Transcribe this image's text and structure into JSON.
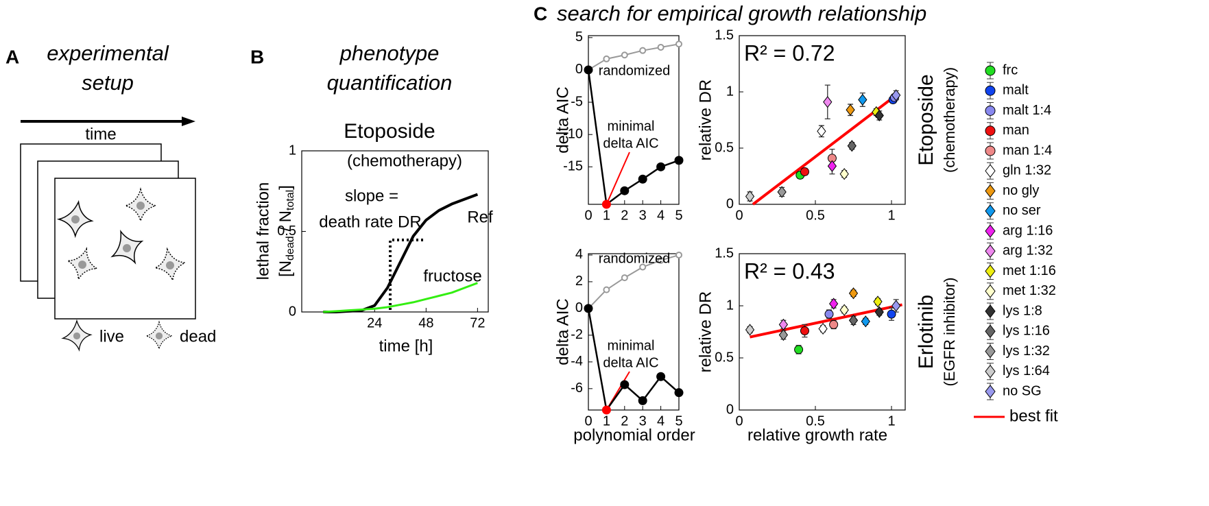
{
  "panels": {
    "A": {
      "letter": "A",
      "title": [
        "experimental",
        "setup"
      ],
      "time": "time",
      "live": "live",
      "dead": "dead"
    },
    "B": {
      "letter": "B",
      "title": [
        "phenotype",
        "quantification"
      ]
    },
    "C": {
      "letter": "C",
      "title": "search for empirical growth relationship",
      "rows": [
        [
          "Etoposide",
          "(chemotherapy)"
        ],
        [
          "Erlotinib",
          "(EGFR inhibitor)"
        ]
      ]
    }
  },
  "legend": {
    "names": [
      "frc",
      "malt",
      "malt 1:4",
      "man",
      "man 1:4",
      "gln 1:32",
      "no gly",
      "no ser",
      "arg 1:16",
      "arg 1:32",
      "met 1:16",
      "met 1:32",
      "lys 1:8",
      "lys 1:16",
      "lys 1:32",
      "lys 1:64",
      "no SG"
    ],
    "colors": [
      "#22dd22",
      "#1144ee",
      "#8888ee",
      "#ee1111",
      "#ee8888",
      "#ffffff",
      "#ee9911",
      "#1199ee",
      "#ee22ee",
      "#ee88ee",
      "#eeee11",
      "#ffffcc",
      "#333333",
      "#666666",
      "#999999",
      "#cccccc",
      "#9999ee"
    ],
    "markers": [
      "circle",
      "circle",
      "circle",
      "circle",
      "circle",
      "diamond",
      "diamond",
      "diamond",
      "diamond",
      "diamond",
      "diamond",
      "diamond",
      "diamond",
      "diamond",
      "diamond",
      "diamond",
      "diamond"
    ],
    "fit_name": "best fit",
    "fit_color": "#ff0000"
  },
  "chart_data": [
    {
      "type": "line",
      "title": "Etoposide",
      "subtitle": "(chemotherapy)",
      "xlabel": "time [h]",
      "ylabel": [
        "lethal fraction",
        [
          "[N",
          "dead",
          " / N",
          "total",
          "]"
        ]
      ],
      "annotation": [
        "slope =",
        "death rate DR"
      ],
      "x": [
        0,
        6,
        12,
        18,
        24,
        30,
        36,
        42,
        48,
        54,
        60,
        66,
        72
      ],
      "series": [
        {
          "name": "Ref",
          "color": "#000000",
          "values": [
            0,
            0,
            0.005,
            0.01,
            0.04,
            0.15,
            0.31,
            0.47,
            0.57,
            0.63,
            0.67,
            0.7,
            0.73
          ]
        },
        {
          "name": "fructose",
          "color": "#33ee11",
          "values": [
            0,
            0.005,
            0.01,
            0.015,
            0.02,
            0.03,
            0.045,
            0.06,
            0.08,
            0.1,
            0.12,
            0.15,
            0.18
          ]
        }
      ],
      "xlim": [
        -10,
        77
      ],
      "ylim": [
        0,
        1
      ],
      "xticks": [
        24,
        48,
        72
      ],
      "yticks": [
        0,
        0.5,
        1
      ]
    },
    {
      "type": "line",
      "ylabel": "delta AIC",
      "annotation": [
        "minimal",
        "delta AIC"
      ],
      "annotation_color": "#ff0000",
      "x": [
        0,
        1,
        2,
        3,
        4,
        5
      ],
      "series": [
        {
          "name": "randomized",
          "color": "#999999",
          "marker": "open",
          "values": [
            0,
            1.7,
            2.3,
            3.0,
            3.5,
            4.0
          ]
        },
        {
          "color": "#000000",
          "marker": "filled",
          "values": [
            0,
            -20.8,
            -18.7,
            -16.9,
            -15.0,
            -14.0
          ]
        }
      ],
      "highlight": {
        "series": 1,
        "index": 1,
        "color": "#ff0000"
      },
      "xlim": [
        0,
        5
      ],
      "ylim": [
        -20.8,
        5.3
      ],
      "xticks": [
        0,
        1,
        2,
        3,
        4,
        5
      ],
      "yticks": [
        -15,
        -10,
        -5,
        0,
        5
      ]
    },
    {
      "type": "line",
      "ylabel": "delta AIC",
      "xlabel": "polynomial order",
      "annotation": [
        "minimal",
        "delta AIC"
      ],
      "annotation_color": "#ff0000",
      "x": [
        0,
        1,
        2,
        3,
        4,
        5
      ],
      "series": [
        {
          "name": "randomized",
          "color": "#999999",
          "marker": "open",
          "values": [
            0,
            1.4,
            2.3,
            3.1,
            3.6,
            4.0
          ]
        },
        {
          "color": "#000000",
          "marker": "filled",
          "values": [
            0,
            -7.6,
            -5.7,
            -6.9,
            -5.1,
            -6.3
          ]
        }
      ],
      "highlight": {
        "series": 1,
        "index": 1,
        "color": "#ff0000"
      },
      "xlim": [
        0,
        5
      ],
      "ylim": [
        -7.6,
        4.1
      ],
      "xticks": [
        0,
        1,
        2,
        3,
        4,
        5
      ],
      "yticks": [
        -6,
        -4,
        -2,
        0,
        2,
        4
      ]
    },
    {
      "type": "scatter",
      "ylabel": "relative DR",
      "annotation": "R² = 0.72",
      "x": [
        0.4,
        1.01,
        1.02,
        0.43,
        0.61,
        0.54,
        0.73,
        0.81,
        0.61,
        0.58,
        0.9,
        0.69,
        0.92,
        0.74,
        0.28,
        0.07,
        1.03
      ],
      "values": [
        0.26,
        0.93,
        0.95,
        0.29,
        0.41,
        0.65,
        0.84,
        0.93,
        0.34,
        0.91,
        0.82,
        0.27,
        0.79,
        0.52,
        0.11,
        0.07,
        0.97
      ],
      "errors": [
        0.03,
        0.03,
        0.03,
        0.03,
        0.08,
        0.05,
        0.05,
        0.06,
        0.07,
        0.15,
        0.03,
        0.03,
        0.04,
        0.03,
        0.04,
        0.04,
        0.04
      ],
      "fit": {
        "x": [
          0.09,
          1.03
        ],
        "values": [
          0,
          0.97
        ]
      },
      "xlim": [
        0,
        1.09
      ],
      "ylim": [
        0,
        1.5
      ],
      "xticks": [
        0,
        0.5,
        1
      ],
      "yticks": [
        0,
        0.5,
        1,
        1.5
      ]
    },
    {
      "type": "scatter",
      "ylabel": "relative DR",
      "xlabel": "relative growth rate",
      "annotation": "R² = 0.43",
      "x": [
        0.39,
        1.0,
        0.59,
        0.43,
        0.62,
        0.55,
        0.75,
        0.83,
        0.62,
        0.29,
        0.91,
        0.69,
        0.92,
        0.75,
        0.29,
        0.07,
        1.03
      ],
      "values": [
        0.58,
        0.92,
        0.92,
        0.76,
        0.82,
        0.78,
        1.12,
        0.85,
        1.02,
        0.82,
        1.04,
        0.96,
        0.94,
        0.86,
        0.72,
        0.77,
        1.0
      ],
      "errors": [
        0.04,
        0.06,
        0.04,
        0.06,
        0.04,
        0.03,
        0.03,
        0.03,
        0.04,
        0.04,
        0.03,
        0.03,
        0.03,
        0.04,
        0.04,
        0.03,
        0.06
      ],
      "fit": {
        "x": [
          0.07,
          1.07
        ],
        "values": [
          0.7,
          1.01
        ]
      },
      "xlim": [
        0,
        1.09
      ],
      "ylim": [
        0,
        1.5
      ],
      "xticks": [
        0,
        0.5,
        1
      ],
      "yticks": [
        0,
        0.5,
        1,
        1.5
      ]
    }
  ]
}
